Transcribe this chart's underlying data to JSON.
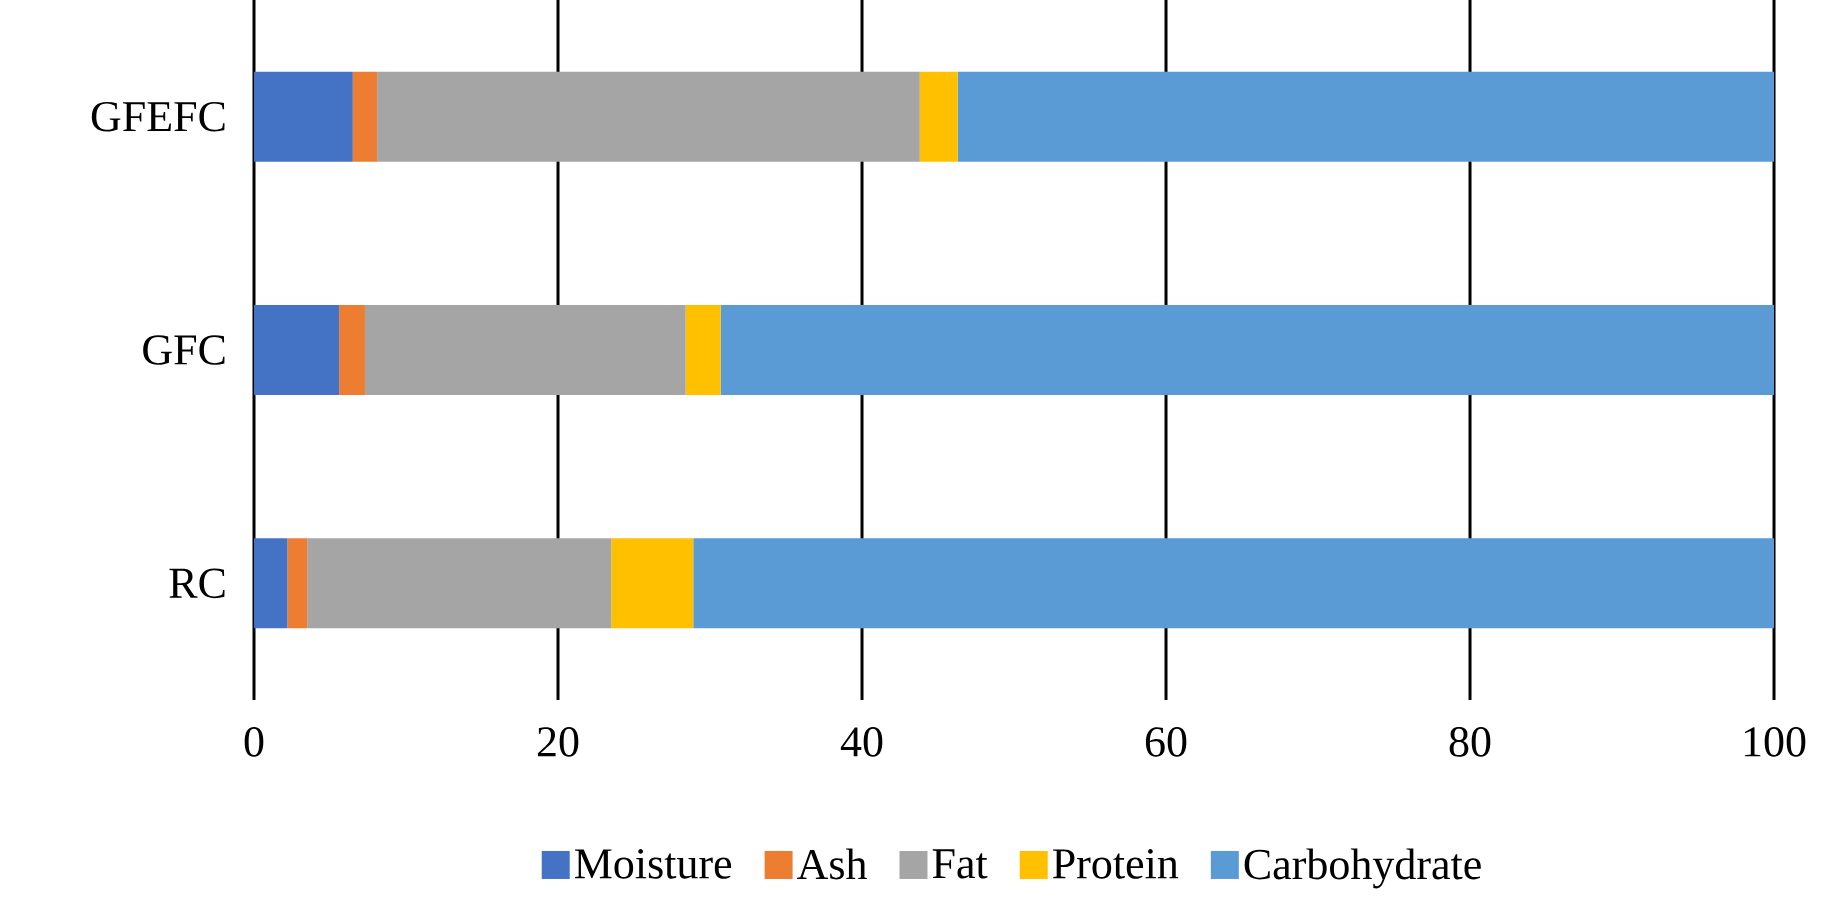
{
  "chart_data": {
    "type": "bar",
    "orientation": "horizontal",
    "stacked": true,
    "categories": [
      "GFEFC",
      "GFC",
      "RC"
    ],
    "series": [
      {
        "name": "Moisture",
        "color": "#4472c4",
        "values": [
          6.5,
          5.6,
          2.2
        ]
      },
      {
        "name": "Ash",
        "color": "#ed7d31",
        "values": [
          1.6,
          1.7,
          1.3
        ]
      },
      {
        "name": "Fat",
        "color": "#a5a5a5",
        "values": [
          35.7,
          21.1,
          20.0
        ]
      },
      {
        "name": "Protein",
        "color": "#ffc000",
        "values": [
          2.5,
          2.3,
          5.4
        ]
      },
      {
        "name": "Carbohydrate",
        "color": "#5b9bd5",
        "values": [
          53.7,
          69.3,
          71.1
        ]
      }
    ],
    "xlim": [
      0,
      100
    ],
    "xticks": [
      0,
      20,
      40,
      60,
      80,
      100
    ],
    "grid": "x",
    "legend": "bottom"
  }
}
